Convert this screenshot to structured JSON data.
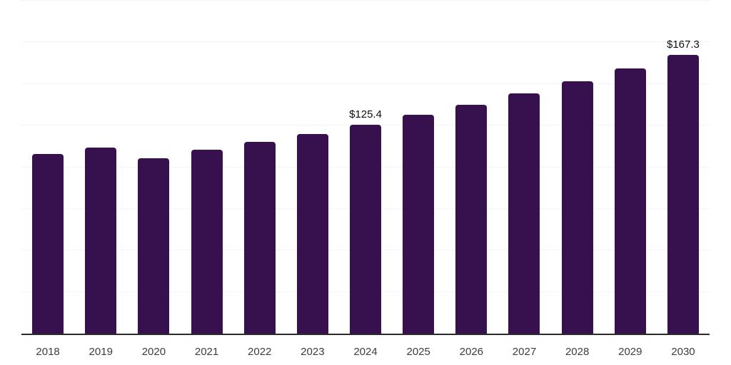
{
  "chart_data": {
    "type": "bar",
    "title": "",
    "xlabel": "",
    "ylabel": "",
    "categories": [
      "2018",
      "2019",
      "2020",
      "2021",
      "2022",
      "2023",
      "2024",
      "2025",
      "2026",
      "2027",
      "2028",
      "2029",
      "2030"
    ],
    "values": [
      107.9,
      111.7,
      105.5,
      110.3,
      115.1,
      119.8,
      125.4,
      131.4,
      137.4,
      144.3,
      151.5,
      159.2,
      167.3
    ],
    "value_labels": {
      "2024": "$125.4",
      "2030": "$167.3"
    },
    "ylim": [
      0,
      200
    ],
    "gridline_step": 25,
    "grid": true,
    "legend": false,
    "y_axis_labels_shown": false,
    "colors": {
      "bar": "#37114E",
      "axis": "#2B2B2B",
      "gridline": "#F4F4F4",
      "tick_label": "#3C3C3C",
      "value_label": "#0F0F0F",
      "background": "#FFFFFF"
    }
  }
}
